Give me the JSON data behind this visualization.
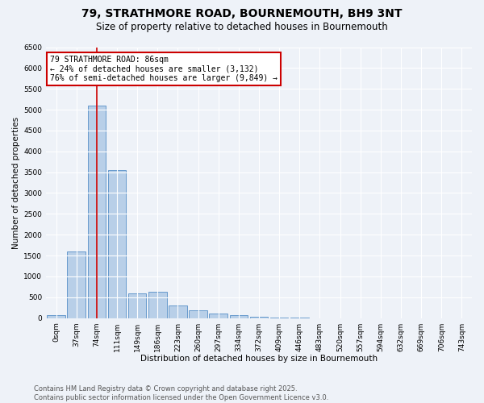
{
  "title_line1": "79, STRATHMORE ROAD, BOURNEMOUTH, BH9 3NT",
  "title_line2": "Size of property relative to detached houses in Bournemouth",
  "xlabel": "Distribution of detached houses by size in Bournemouth",
  "ylabel": "Number of detached properties",
  "bar_color": "#b8cfe8",
  "bar_edge_color": "#6699cc",
  "vline_color": "#cc0000",
  "vline_x_index": 2,
  "annotation_text": "79 STRATHMORE ROAD: 86sqm\n← 24% of detached houses are smaller (3,132)\n76% of semi-detached houses are larger (9,849) →",
  "annotation_box_edgecolor": "#cc0000",
  "categories": [
    "0sqm",
    "37sqm",
    "74sqm",
    "111sqm",
    "149sqm",
    "186sqm",
    "223sqm",
    "260sqm",
    "297sqm",
    "334sqm",
    "372sqm",
    "409sqm",
    "446sqm",
    "483sqm",
    "520sqm",
    "557sqm",
    "594sqm",
    "632sqm",
    "669sqm",
    "706sqm",
    "743sqm"
  ],
  "values": [
    75,
    1600,
    5100,
    3550,
    600,
    625,
    310,
    185,
    100,
    65,
    35,
    10,
    5,
    0,
    0,
    0,
    0,
    0,
    0,
    0,
    0
  ],
  "ylim": [
    0,
    6500
  ],
  "yticks": [
    0,
    500,
    1000,
    1500,
    2000,
    2500,
    3000,
    3500,
    4000,
    4500,
    5000,
    5500,
    6000,
    6500
  ],
  "background_color": "#eef2f8",
  "plot_bg_color": "#eef2f8",
  "footer_text": "Contains HM Land Registry data © Crown copyright and database right 2025.\nContains public sector information licensed under the Open Government Licence v3.0.",
  "title_fontsize": 10,
  "subtitle_fontsize": 8.5,
  "axis_label_fontsize": 7.5,
  "tick_fontsize": 6.5,
  "footer_fontsize": 6,
  "annotation_fontsize": 7
}
